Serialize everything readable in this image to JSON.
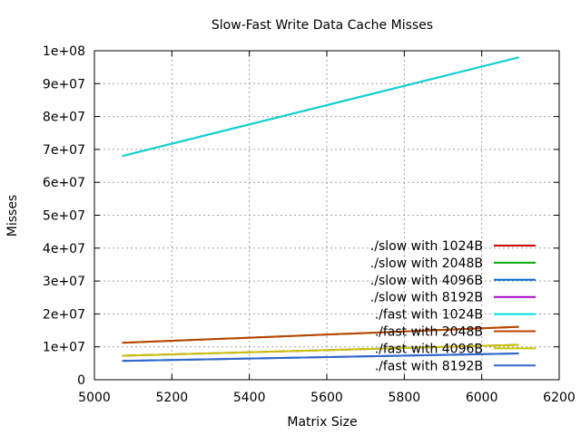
{
  "chart_data": {
    "type": "line",
    "title": "Slow-Fast Write Data Cache Misses",
    "xlabel": "Matrix Size",
    "ylabel": "Misses",
    "xlim": [
      5000,
      6200
    ],
    "ylim": [
      0,
      100000000
    ],
    "x_ticks": [
      5000,
      5200,
      5400,
      5600,
      5800,
      6000,
      6200
    ],
    "x_tick_labels": [
      "5000",
      "5200",
      "5400",
      "5600",
      "5800",
      "6000",
      "6200"
    ],
    "y_ticks": [
      0,
      10000000,
      20000000,
      30000000,
      40000000,
      50000000,
      60000000,
      70000000,
      80000000,
      90000000,
      100000000
    ],
    "y_tick_labels": [
      "0",
      "1e+07",
      "2e+07",
      "3e+07",
      "4e+07",
      "5e+07",
      "6e+07",
      "7e+07",
      "8e+07",
      "9e+07",
      "1e+08"
    ],
    "grid": true,
    "legend_position": "right",
    "series": [
      {
        "name": "./slow with 1024B",
        "color": "#cc0000",
        "x": [
          5072,
          6096
        ],
        "y": [
          68000000,
          98000000
        ]
      },
      {
        "name": "./slow with 2048B",
        "color": "#00aa00",
        "x": [
          5072,
          6096
        ],
        "y": [
          11200000,
          16100000
        ]
      },
      {
        "name": "./slow with 4096B",
        "color": "#0066cc",
        "x": [
          5072,
          6096
        ],
        "y": [
          5700000,
          8000000
        ]
      },
      {
        "name": "./slow with 8192B",
        "color": "#aa00cc",
        "x": [
          5072,
          6096
        ],
        "y": [
          7300000,
          10600000
        ]
      },
      {
        "name": "./fast with 1024B",
        "color": "#00dddd",
        "x": [
          5072,
          6096
        ],
        "y": [
          68000000,
          98000000
        ]
      },
      {
        "name": "./fast with 2048B",
        "color": "#c04000",
        "x": [
          5072,
          6096
        ],
        "y": [
          11200000,
          16100000
        ]
      },
      {
        "name": "./fast with 4096B",
        "color": "#c8c800",
        "x": [
          5072,
          6096
        ],
        "y": [
          7300000,
          10600000
        ]
      },
      {
        "name": "./fast with 8192B",
        "color": "#3366cc",
        "x": [
          5072,
          6096
        ],
        "y": [
          5700000,
          8000000
        ]
      }
    ]
  }
}
